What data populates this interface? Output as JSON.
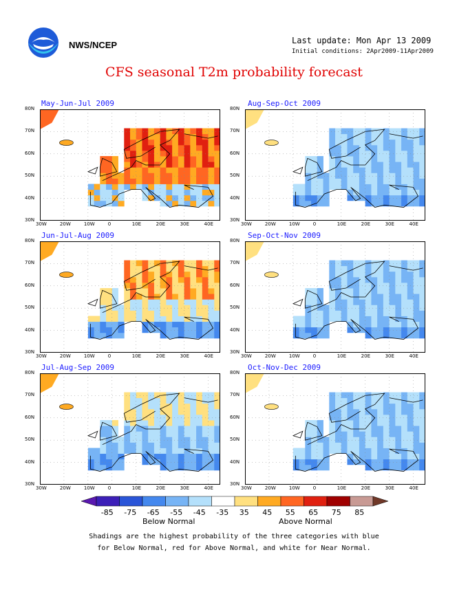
{
  "header": {
    "agency": "NWS/NCEP",
    "last_update": "Last update: Mon Apr 13 2009",
    "initial_conditions": "Initial conditions: 2Apr2009-11Apr2009",
    "title": "CFS seasonal T2m probability forecast"
  },
  "axes": {
    "lat_labels": [
      "80N",
      "70N",
      "60N",
      "50N",
      "40N",
      "30N"
    ],
    "lon_labels": [
      "30W",
      "20W",
      "10W",
      "0",
      "10E",
      "20E",
      "30E",
      "40E"
    ]
  },
  "panels": [
    {
      "title": "May-Jun-Jul 2009",
      "tendency": "above"
    },
    {
      "title": "Aug-Sep-Oct 2009",
      "tendency": "below"
    },
    {
      "title": "Jun-Jul-Aug 2009",
      "tendency": "mixed"
    },
    {
      "title": "Sep-Oct-Nov 2009",
      "tendency": "below"
    },
    {
      "title": "Jul-Aug-Sep 2009",
      "tendency": "mixed-below"
    },
    {
      "title": "Oct-Nov-Dec 2009",
      "tendency": "below"
    }
  ],
  "colorbar": {
    "labels": [
      "-85",
      "-75",
      "-65",
      "-55",
      "-45",
      "-35",
      "35",
      "45",
      "55",
      "65",
      "75",
      "85"
    ],
    "colors": [
      "#3c1fb8",
      "#2a55d8",
      "#4488ee",
      "#77b4f5",
      "#b4e0fb",
      "#ffffff",
      "#ffe080",
      "#ffaa22",
      "#ff6622",
      "#e02010",
      "#a00000",
      "#c89a94"
    ],
    "below_label": "Below Normal",
    "above_label": "Above Normal",
    "below_end": "#5a18b0",
    "above_end": "#703828"
  },
  "caption": {
    "line1": "Shadings are the highest probability of the three categories with blue",
    "line2": "for Below Normal, red for Above Normal, and white for Near Normal."
  }
}
